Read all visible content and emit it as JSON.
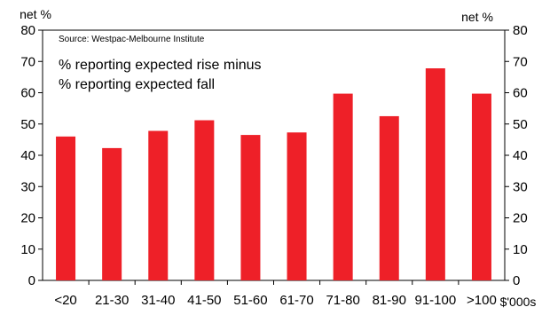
{
  "chart_data": {
    "type": "bar",
    "categories": [
      "<20",
      "21-30",
      "31-40",
      "41-50",
      "51-60",
      "61-70",
      "71-80",
      "81-90",
      "91-100",
      ">100"
    ],
    "values": [
      46,
      42.3,
      47.8,
      51.2,
      46.5,
      47.3,
      59.7,
      52.5,
      67.8,
      59.7
    ],
    "ylim": [
      0,
      80
    ],
    "yticks": [
      0,
      10,
      20,
      30,
      40,
      50,
      60,
      70,
      80
    ],
    "ylabel_left": "net %",
    "ylabel_right": "net %",
    "xlabel": "$'000s",
    "source": "Source: Westpac-Melbourne Institute",
    "annotation_line1": "% reporting expected rise minus",
    "annotation_line2": "% reporting expected fall",
    "bar_color": "#ee2028",
    "grid": false,
    "legend": "none"
  }
}
